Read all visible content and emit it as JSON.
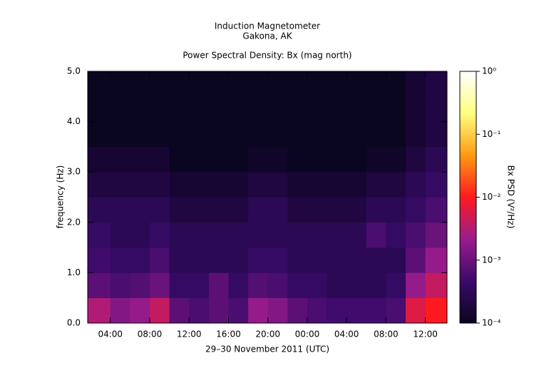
{
  "chart_data": {
    "type": "spectrogram",
    "title": "Induction Magnetometer",
    "subtitle": "Gakona, AK",
    "plot_title": "Power Spectral Density: Bx (mag north)",
    "xlabel": "29–30 November 2011 (UTC)",
    "ylabel": "frequency (Hz)",
    "colorbar_label": "Bx PSD (V²/Hz)",
    "xlim": [
      1.7,
      38.2
    ],
    "ylim": [
      0,
      5
    ],
    "xticks": [
      {
        "value": 4,
        "label": "04:00"
      },
      {
        "value": 8,
        "label": "08:00"
      },
      {
        "value": 12,
        "label": "12:00"
      },
      {
        "value": 16,
        "label": "16:00"
      },
      {
        "value": 20,
        "label": "20:00"
      },
      {
        "value": 24,
        "label": "00:00"
      },
      {
        "value": 28,
        "label": "04:00"
      },
      {
        "value": 32,
        "label": "08:00"
      },
      {
        "value": 36,
        "label": "12:00"
      }
    ],
    "yticks": [
      {
        "value": 0,
        "label": "0.0"
      },
      {
        "value": 1,
        "label": "1.0"
      },
      {
        "value": 2,
        "label": "2.0"
      },
      {
        "value": 3,
        "label": "3.0"
      },
      {
        "value": 4,
        "label": "4.0"
      },
      {
        "value": 5,
        "label": "5.0"
      }
    ],
    "clim": [
      0.0001,
      1
    ],
    "color_log_scale": true,
    "cticks": [
      {
        "value": 0.0001,
        "label": "10⁻⁴"
      },
      {
        "value": 0.001,
        "label": "10⁻³"
      },
      {
        "value": 0.01,
        "label": "10⁻²"
      },
      {
        "value": 0.1,
        "label": "10⁻¹"
      },
      {
        "value": 1,
        "label": "10⁰"
      }
    ],
    "colormap": [
      "#0a0520",
      "#3a0a6a",
      "#9a1c8c",
      "#ff1a20",
      "#ff9a10",
      "#ffff80",
      "#ffffff"
    ],
    "x_bins": [
      1.7,
      4,
      6,
      8,
      10,
      12,
      14,
      16,
      18,
      20,
      22,
      24,
      26,
      28,
      30,
      32,
      34,
      36,
      38.2
    ],
    "y_bins": [
      0,
      0.5,
      1,
      1.5,
      2,
      2.5,
      3,
      3.5,
      4,
      4.5,
      5
    ],
    "values": [
      [
        0.003,
        0.0015,
        0.002,
        0.004,
        0.0008,
        0.0006,
        0.0008,
        0.0006,
        0.002,
        0.0015,
        0.0008,
        0.0006,
        0.0005,
        0.0005,
        0.0005,
        0.0006,
        0.006,
        0.01
      ],
      [
        0.0008,
        0.0006,
        0.0007,
        0.001,
        0.0004,
        0.0004,
        0.0008,
        0.0004,
        0.0007,
        0.0006,
        0.0004,
        0.0004,
        0.0003,
        0.0003,
        0.0003,
        0.0004,
        0.002,
        0.004
      ],
      [
        0.0005,
        0.0004,
        0.0004,
        0.0006,
        0.0003,
        0.0003,
        0.0003,
        0.0003,
        0.0004,
        0.0004,
        0.0003,
        0.0003,
        0.0003,
        0.0003,
        0.0003,
        0.0003,
        0.0008,
        0.002
      ],
      [
        0.0004,
        0.0003,
        0.0003,
        0.0004,
        0.0003,
        0.0003,
        0.0003,
        0.0003,
        0.0003,
        0.0003,
        0.0003,
        0.0003,
        0.0003,
        0.0003,
        0.0006,
        0.0004,
        0.0006,
        0.001
      ],
      [
        0.0003,
        0.0003,
        0.0003,
        0.0003,
        0.0002,
        0.0002,
        0.0002,
        0.0002,
        0.0003,
        0.0003,
        0.0002,
        0.0002,
        0.0002,
        0.0002,
        0.0003,
        0.0003,
        0.0004,
        0.0006
      ],
      [
        0.0002,
        0.0002,
        0.0002,
        0.0002,
        0.00015,
        0.00015,
        0.00015,
        0.00015,
        0.0002,
        0.0002,
        0.00015,
        0.00015,
        0.00015,
        0.00015,
        0.0002,
        0.0002,
        0.0003,
        0.0004
      ],
      [
        0.00015,
        0.00015,
        0.00015,
        0.00015,
        0.0001,
        0.0001,
        0.0001,
        0.0001,
        0.00012,
        0.00012,
        0.0001,
        0.0001,
        0.0001,
        0.0001,
        0.00012,
        0.00012,
        0.0002,
        0.0003
      ],
      [
        0.0001,
        0.0001,
        0.0001,
        0.0001,
        0.0001,
        0.0001,
        0.0001,
        0.0001,
        0.0001,
        0.0001,
        0.0001,
        0.0001,
        0.0001,
        0.0001,
        0.0001,
        0.0001,
        0.00015,
        0.0002
      ],
      [
        0.0001,
        0.0001,
        0.0001,
        0.0001,
        0.0001,
        0.0001,
        0.0001,
        0.0001,
        0.0001,
        0.0001,
        0.0001,
        0.0001,
        0.0001,
        0.0001,
        0.0001,
        0.0001,
        0.00015,
        0.0002
      ],
      [
        0.0001,
        0.0001,
        0.0001,
        0.0001,
        0.0001,
        0.0001,
        0.0001,
        0.0001,
        0.0001,
        0.0001,
        0.0001,
        0.0001,
        0.0001,
        0.0001,
        0.0001,
        0.0001,
        0.00015,
        0.0002
      ]
    ]
  }
}
